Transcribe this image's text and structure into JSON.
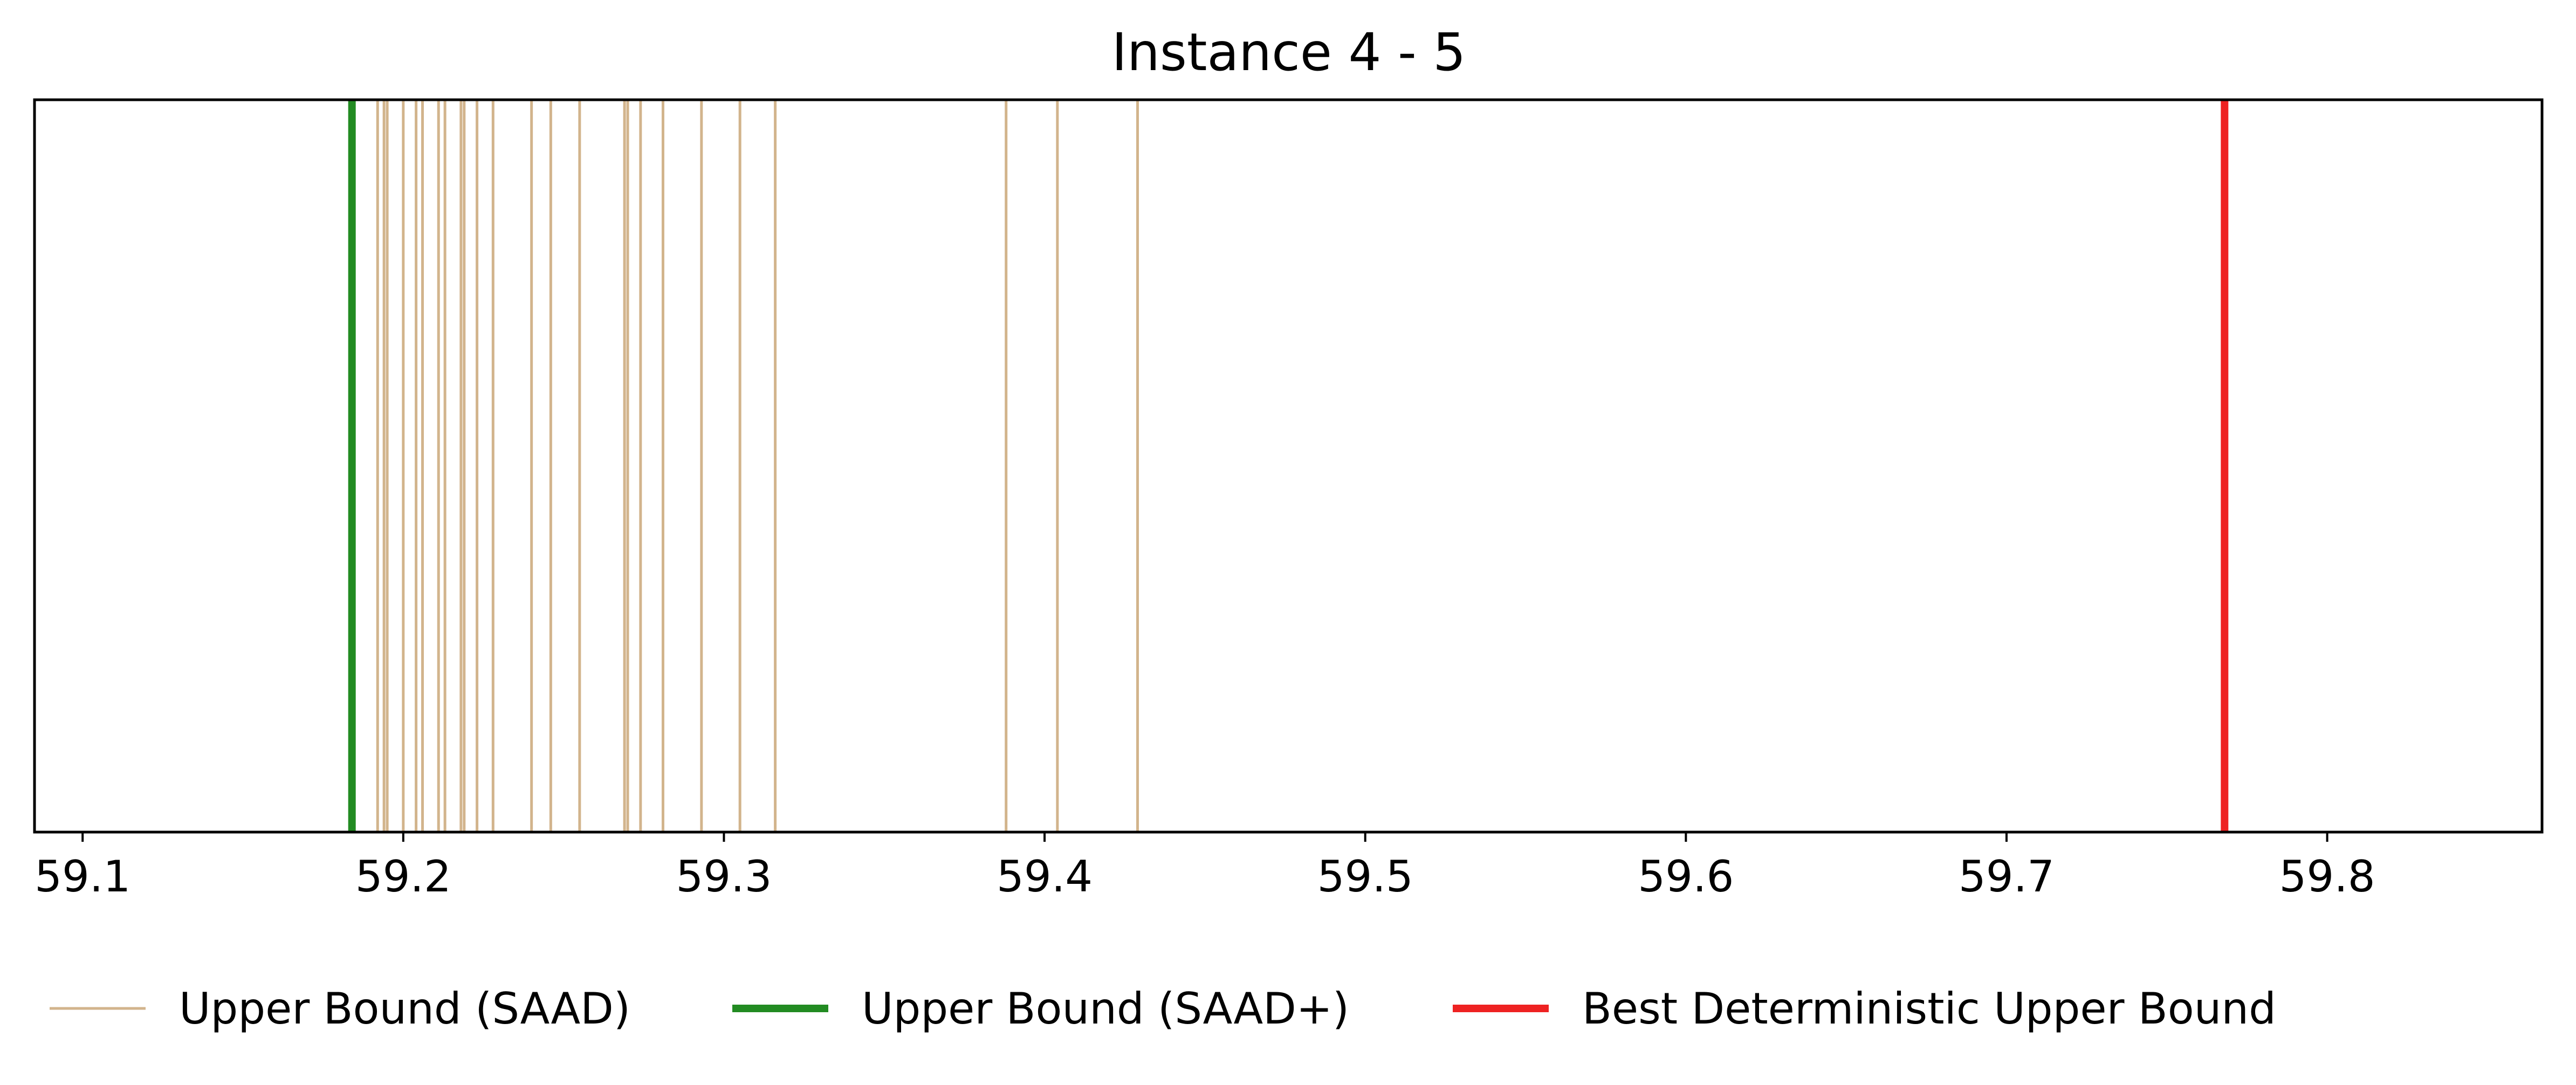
{
  "chart_data": {
    "type": "event-lines",
    "title": "Instance 4 - 5",
    "xlabel": "",
    "ylabel": "",
    "xlim": [
      59.085,
      59.867
    ],
    "x_ticks": [
      59.1,
      59.2,
      59.3,
      59.4,
      59.5,
      59.6,
      59.7,
      59.8
    ],
    "x_tick_labels": [
      "59.1",
      "59.2",
      "59.3",
      "59.4",
      "59.5",
      "59.6",
      "59.7",
      "59.8"
    ],
    "y_ticks_visible": false,
    "grid": false,
    "legend_placement": "below plot, horizontal",
    "series": [
      {
        "name": "Upper Bound (SAAD)",
        "color": "#d2b48c",
        "style": "thin vertical lines",
        "values": [
          59.192,
          59.194,
          59.195,
          59.2,
          59.204,
          59.206,
          59.211,
          59.213,
          59.218,
          59.219,
          59.223,
          59.228,
          59.24,
          59.246,
          59.255,
          59.269,
          59.27,
          59.274,
          59.281,
          59.293,
          59.305,
          59.316,
          59.388,
          59.404,
          59.429
        ]
      },
      {
        "name": "Upper Bound (SAAD+)",
        "color": "#228b22",
        "style": "thick vertical line",
        "values": [
          59.184
        ]
      },
      {
        "name": "Best Deterministic Upper Bound",
        "color": "#ee2222",
        "style": "thick vertical line",
        "values": [
          59.768
        ]
      }
    ]
  }
}
